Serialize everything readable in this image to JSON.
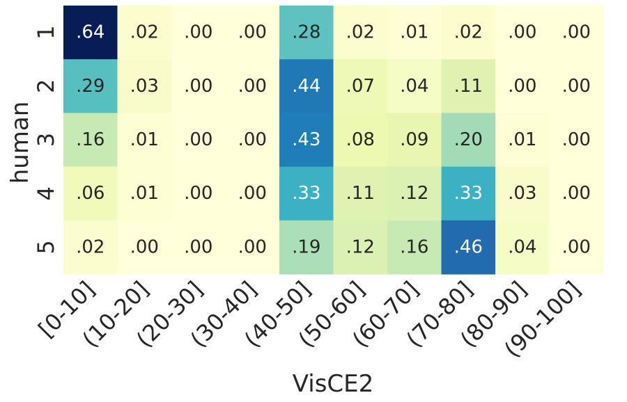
{
  "chart_data": {
    "type": "heatmap",
    "xlabel": "VisCE2",
    "ylabel": "human",
    "x_categories": [
      "[0-10]",
      "(10-20]",
      "(20-30]",
      "(30-40]",
      "(40-50]",
      "(50-60]",
      "(60-70]",
      "(70-80]",
      "(80-90]",
      "(90-100]"
    ],
    "y_categories": [
      "1",
      "2",
      "3",
      "4",
      "5"
    ],
    "values": [
      [
        0.64,
        0.02,
        0.0,
        0.0,
        0.28,
        0.02,
        0.01,
        0.02,
        0.0,
        0.0
      ],
      [
        0.29,
        0.03,
        0.0,
        0.0,
        0.44,
        0.07,
        0.04,
        0.11,
        0.0,
        0.0
      ],
      [
        0.16,
        0.01,
        0.0,
        0.0,
        0.43,
        0.08,
        0.09,
        0.2,
        0.01,
        0.0
      ],
      [
        0.06,
        0.01,
        0.0,
        0.0,
        0.33,
        0.11,
        0.12,
        0.33,
        0.03,
        0.0
      ],
      [
        0.02,
        0.0,
        0.0,
        0.0,
        0.19,
        0.12,
        0.16,
        0.46,
        0.04,
        0.0
      ]
    ],
    "labels": [
      [
        ".64",
        ".02",
        ".00",
        ".00",
        ".28",
        ".02",
        ".01",
        ".02",
        ".00",
        ".00"
      ],
      [
        ".29",
        ".03",
        ".00",
        ".00",
        ".44",
        ".07",
        ".04",
        ".11",
        ".00",
        ".00"
      ],
      [
        ".16",
        ".01",
        ".00",
        ".00",
        ".43",
        ".08",
        ".09",
        ".20",
        ".01",
        ".00"
      ],
      [
        ".06",
        ".01",
        ".00",
        ".00",
        ".33",
        ".11",
        ".12",
        ".33",
        ".03",
        ".00"
      ],
      [
        ".02",
        ".00",
        ".00",
        ".00",
        ".19",
        ".12",
        ".16",
        ".46",
        ".04",
        ".00"
      ]
    ],
    "colormap": "YlGnBu",
    "vmin": 0.0,
    "vmax": 0.64,
    "colorbar": false,
    "grid": false
  }
}
